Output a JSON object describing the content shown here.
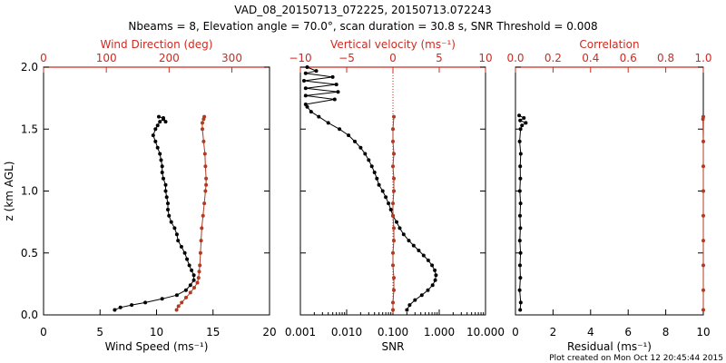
{
  "colors": {
    "black": "#000000",
    "red": "#b03a22",
    "axis_red": "#d02a20"
  },
  "title_line1": "VAD_08_20150713_072225, 20150713.072243",
  "title_line2": "Nbeams = 8, Elevation angle = 70.0°, scan duration = 30.8 s, SNR Threshold = 0.008",
  "footer": "Plot created on Mon Oct 12 20:45:44 2015",
  "chart_data": [
    {
      "type": "line",
      "ylabel": "z (km AGL)",
      "ylim": [
        0,
        2
      ],
      "yticks": [
        "0.0",
        "0.5",
        "1.0",
        "1.5",
        "2.0"
      ],
      "bottom_axis": {
        "label": "Wind Speed (ms⁻¹)",
        "range": [
          0,
          20
        ],
        "ticks": [
          "0",
          "5",
          "10",
          "15",
          "20"
        ]
      },
      "top_axis": {
        "label": "Wind Direction (deg)",
        "range": [
          0,
          360
        ],
        "ticks": [
          "0",
          "100",
          "200",
          "300"
        ]
      },
      "series": [
        {
          "name": "Wind Speed",
          "axis": "bottom",
          "color": "black",
          "points": [
            [
              6.3,
              0.04
            ],
            [
              6.8,
              0.06
            ],
            [
              7.8,
              0.08
            ],
            [
              9.0,
              0.1
            ],
            [
              10.5,
              0.13
            ],
            [
              11.8,
              0.16
            ],
            [
              12.6,
              0.2
            ],
            [
              13.0,
              0.24
            ],
            [
              13.3,
              0.28
            ],
            [
              13.3,
              0.32
            ],
            [
              13.1,
              0.36
            ],
            [
              12.9,
              0.4
            ],
            [
              12.7,
              0.45
            ],
            [
              12.5,
              0.5
            ],
            [
              12.2,
              0.55
            ],
            [
              11.9,
              0.6
            ],
            [
              11.8,
              0.65
            ],
            [
              11.6,
              0.7
            ],
            [
              11.3,
              0.75
            ],
            [
              11.1,
              0.8
            ],
            [
              11.0,
              0.85
            ],
            [
              11.0,
              0.9
            ],
            [
              10.9,
              0.95
            ],
            [
              10.8,
              1.0
            ],
            [
              10.8,
              1.05
            ],
            [
              10.6,
              1.1
            ],
            [
              10.5,
              1.15
            ],
            [
              10.5,
              1.2
            ],
            [
              10.4,
              1.25
            ],
            [
              10.3,
              1.3
            ],
            [
              10.1,
              1.35
            ],
            [
              9.9,
              1.4
            ],
            [
              9.7,
              1.45
            ],
            [
              9.9,
              1.5
            ],
            [
              10.1,
              1.53
            ],
            [
              10.3,
              1.56
            ],
            [
              10.6,
              1.58
            ],
            [
              10.8,
              1.56
            ],
            [
              10.6,
              1.59
            ],
            [
              10.2,
              1.6
            ]
          ]
        },
        {
          "name": "Wind Direction",
          "axis": "top",
          "color": "red",
          "points": [
            [
              212,
              0.04
            ],
            [
              215,
              0.07
            ],
            [
              220,
              0.1
            ],
            [
              227,
              0.14
            ],
            [
              234,
              0.18
            ],
            [
              240,
              0.22
            ],
            [
              245,
              0.26
            ],
            [
              247,
              0.3
            ],
            [
              248,
              0.35
            ],
            [
              249,
              0.4
            ],
            [
              250,
              0.5
            ],
            [
              251,
              0.6
            ],
            [
              252,
              0.7
            ],
            [
              254,
              0.8
            ],
            [
              256,
              0.9
            ],
            [
              258,
              1.0
            ],
            [
              259,
              1.05
            ],
            [
              259,
              1.1
            ],
            [
              258,
              1.2
            ],
            [
              257,
              1.3
            ],
            [
              255,
              1.4
            ],
            [
              253,
              1.5
            ],
            [
              253,
              1.55
            ],
            [
              255,
              1.58
            ],
            [
              256,
              1.6
            ]
          ]
        }
      ]
    },
    {
      "type": "line",
      "ylim": [
        0,
        2
      ],
      "bottom_axis": {
        "label": "SNR",
        "scale": "log",
        "range": [
          0.001,
          10
        ],
        "ticks": [
          "0.001",
          "0.010",
          "0.100",
          "1.000",
          "10.000"
        ]
      },
      "top_axis": {
        "label": "Vertical velocity (ms⁻¹)",
        "range": [
          -10,
          10
        ],
        "ticks": [
          "−10",
          "−5",
          "0",
          "5",
          "10"
        ]
      },
      "series": [
        {
          "name": "SNR",
          "axis": "bottom",
          "color": "black",
          "points": [
            [
              0.2,
              0.04
            ],
            [
              0.23,
              0.08
            ],
            [
              0.3,
              0.12
            ],
            [
              0.42,
              0.16
            ],
            [
              0.57,
              0.2
            ],
            [
              0.72,
              0.24
            ],
            [
              0.82,
              0.28
            ],
            [
              0.85,
              0.32
            ],
            [
              0.8,
              0.36
            ],
            [
              0.7,
              0.4
            ],
            [
              0.58,
              0.44
            ],
            [
              0.46,
              0.48
            ],
            [
              0.36,
              0.52
            ],
            [
              0.28,
              0.56
            ],
            [
              0.22,
              0.6
            ],
            [
              0.17,
              0.65
            ],
            [
              0.14,
              0.7
            ],
            [
              0.12,
              0.75
            ],
            [
              0.1,
              0.8
            ],
            [
              0.09,
              0.85
            ],
            [
              0.08,
              0.9
            ],
            [
              0.07,
              0.95
            ],
            [
              0.06,
              1.0
            ],
            [
              0.05,
              1.05
            ],
            [
              0.045,
              1.1
            ],
            [
              0.04,
              1.15
            ],
            [
              0.035,
              1.2
            ],
            [
              0.03,
              1.25
            ],
            [
              0.025,
              1.3
            ],
            [
              0.02,
              1.35
            ],
            [
              0.015,
              1.4
            ],
            [
              0.011,
              1.45
            ],
            [
              0.007,
              1.5
            ],
            [
              0.004,
              1.55
            ],
            [
              0.0025,
              1.6
            ],
            [
              0.0017,
              1.64
            ],
            [
              0.0014,
              1.68
            ],
            [
              0.0013,
              1.7
            ],
            [
              0.0055,
              1.74
            ],
            [
              0.0013,
              1.77
            ],
            [
              0.0065,
              1.8
            ],
            [
              0.0013,
              1.83
            ],
            [
              0.006,
              1.86
            ],
            [
              0.0012,
              1.89
            ],
            [
              0.005,
              1.92
            ],
            [
              0.0013,
              1.95
            ],
            [
              0.0022,
              1.97
            ],
            [
              0.0014,
              2.0
            ]
          ]
        },
        {
          "name": "Vertical velocity",
          "axis": "top",
          "color": "red",
          "points": [
            [
              0.0,
              0.04
            ],
            [
              0.0,
              0.1
            ],
            [
              0.1,
              0.2
            ],
            [
              0.1,
              0.3
            ],
            [
              0.0,
              0.4
            ],
            [
              0.0,
              0.5
            ],
            [
              0.1,
              0.6
            ],
            [
              0.1,
              0.7
            ],
            [
              0.0,
              0.8
            ],
            [
              0.0,
              0.9
            ],
            [
              0.1,
              1.0
            ],
            [
              0.1,
              1.1
            ],
            [
              0.0,
              1.2
            ],
            [
              0.1,
              1.3
            ],
            [
              0.0,
              1.4
            ],
            [
              0.0,
              1.5
            ],
            [
              0.1,
              1.6
            ]
          ]
        }
      ],
      "reference_line": {
        "axis": "top",
        "value": 0
      }
    },
    {
      "type": "line",
      "ylim": [
        0,
        2
      ],
      "bottom_axis": {
        "label": "Residual (ms⁻¹)",
        "range": [
          0,
          10
        ],
        "ticks": [
          "0",
          "2",
          "4",
          "6",
          "8",
          "10"
        ]
      },
      "top_axis": {
        "label": "Correlation",
        "range": [
          0,
          1
        ],
        "ticks": [
          "0.0",
          "0.2",
          "0.4",
          "0.6",
          "0.8",
          "1.0"
        ]
      },
      "series": [
        {
          "name": "Residual",
          "axis": "bottom",
          "color": "black",
          "points": [
            [
              0.25,
              0.04
            ],
            [
              0.28,
              0.1
            ],
            [
              0.22,
              0.2
            ],
            [
              0.26,
              0.3
            ],
            [
              0.24,
              0.4
            ],
            [
              0.27,
              0.5
            ],
            [
              0.23,
              0.6
            ],
            [
              0.26,
              0.7
            ],
            [
              0.24,
              0.8
            ],
            [
              0.27,
              0.9
            ],
            [
              0.23,
              1.0
            ],
            [
              0.26,
              1.1
            ],
            [
              0.25,
              1.2
            ],
            [
              0.28,
              1.3
            ],
            [
              0.22,
              1.4
            ],
            [
              0.27,
              1.5
            ],
            [
              0.35,
              1.53
            ],
            [
              0.55,
              1.55
            ],
            [
              0.25,
              1.57
            ],
            [
              0.45,
              1.59
            ],
            [
              0.2,
              1.61
            ]
          ]
        },
        {
          "name": "Correlation",
          "axis": "top",
          "color": "red",
          "points": [
            [
              1.0,
              0.04
            ],
            [
              1.0,
              0.2
            ],
            [
              1.0,
              0.4
            ],
            [
              1.0,
              0.6
            ],
            [
              1.0,
              0.8
            ],
            [
              1.0,
              1.0
            ],
            [
              1.0,
              1.2
            ],
            [
              1.0,
              1.4
            ],
            [
              0.998,
              1.58
            ],
            [
              1.0,
              1.6
            ]
          ]
        }
      ]
    }
  ]
}
